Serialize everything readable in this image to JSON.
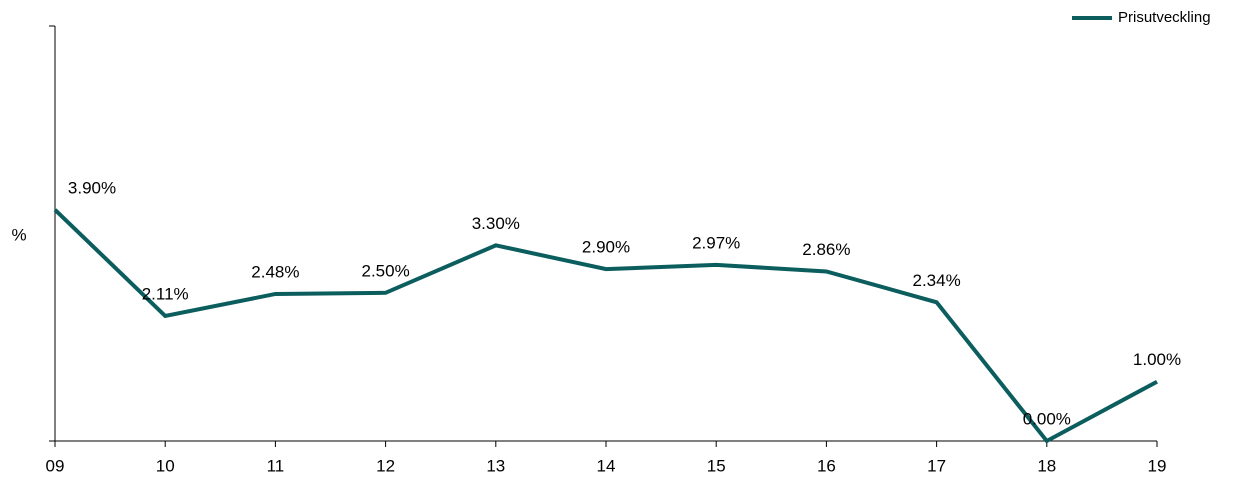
{
  "chart_data": {
    "type": "line",
    "y_label": "%",
    "categories": [
      "09",
      "10",
      "11",
      "12",
      "13",
      "14",
      "15",
      "16",
      "17",
      "18",
      "19"
    ],
    "series": [
      {
        "name": "Prisutveckling",
        "color": "#0b5d5e",
        "values": [
          3.9,
          2.11,
          2.48,
          2.5,
          3.3,
          2.9,
          2.97,
          2.86,
          2.34,
          0.0,
          1.0
        ],
        "value_labels": [
          "3.90%",
          "2.11%",
          "2.48%",
          "2.50%",
          "3.30%",
          "2.90%",
          "2.97%",
          "2.86%",
          "2.34%",
          "0.00%",
          "1.00%"
        ]
      }
    ],
    "ylim": [
      0,
      7
    ],
    "legend": "top-right"
  }
}
